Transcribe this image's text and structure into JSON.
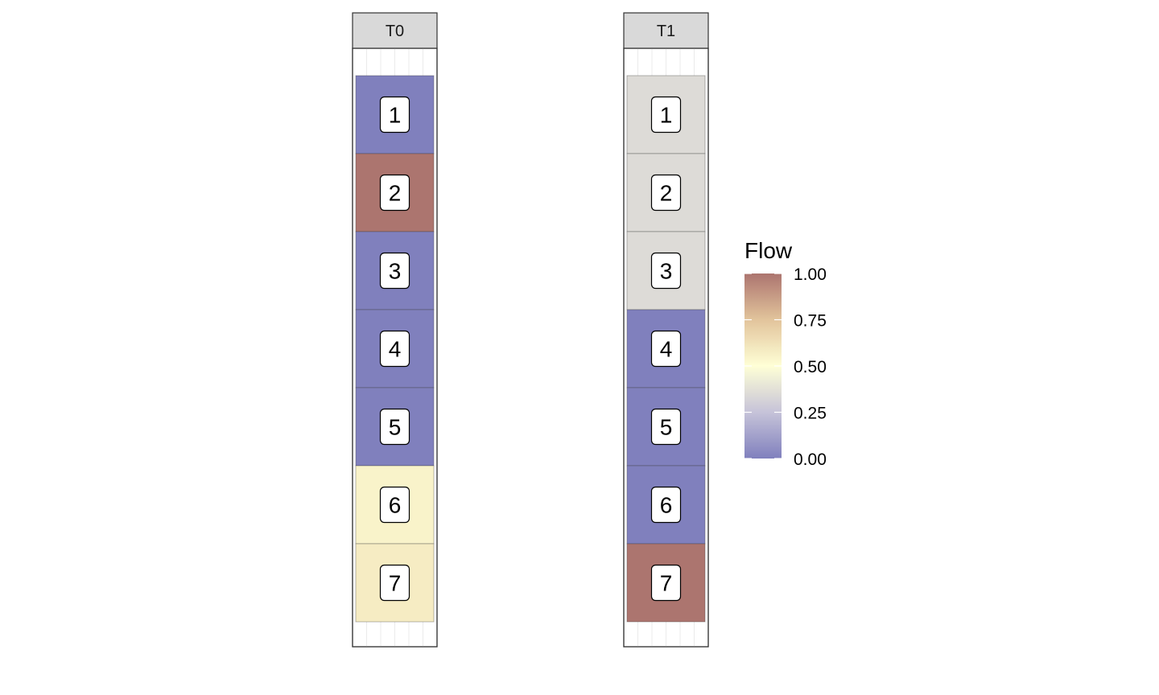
{
  "chart_data": {
    "type": "heatmap",
    "facets": [
      {
        "label": "T0",
        "cells": [
          {
            "label": "1",
            "value": 0.0
          },
          {
            "label": "2",
            "value": 1.0
          },
          {
            "label": "3",
            "value": 0.0
          },
          {
            "label": "4",
            "value": 0.0
          },
          {
            "label": "5",
            "value": 0.0
          },
          {
            "label": "6",
            "value": 0.55
          },
          {
            "label": "7",
            "value": 0.58
          }
        ]
      },
      {
        "label": "T1",
        "cells": [
          {
            "label": "1",
            "value": 0.35
          },
          {
            "label": "2",
            "value": 0.35
          },
          {
            "label": "3",
            "value": 0.35
          },
          {
            "label": "4",
            "value": 0.0
          },
          {
            "label": "5",
            "value": 0.0
          },
          {
            "label": "6",
            "value": 0.0
          },
          {
            "label": "7",
            "value": 1.0
          }
        ]
      }
    ],
    "legend": {
      "title": "Flow",
      "ticks": [
        "1.00",
        "0.75",
        "0.50",
        "0.25",
        "0.00"
      ],
      "tick_values": [
        1.0,
        0.75,
        0.5,
        0.25,
        0.0
      ],
      "range": [
        0,
        1
      ],
      "placement": "right"
    },
    "color_scale": {
      "stops": [
        {
          "at": 0.0,
          "color": "#3b3b99"
        },
        {
          "at": 0.25,
          "color": "#a7a3c4"
        },
        {
          "at": 0.5,
          "color": "#ffffc0"
        },
        {
          "at": 0.75,
          "color": "#d3a466"
        },
        {
          "at": 1.0,
          "color": "#7f2a22"
        }
      ],
      "alpha": 0.65
    }
  }
}
